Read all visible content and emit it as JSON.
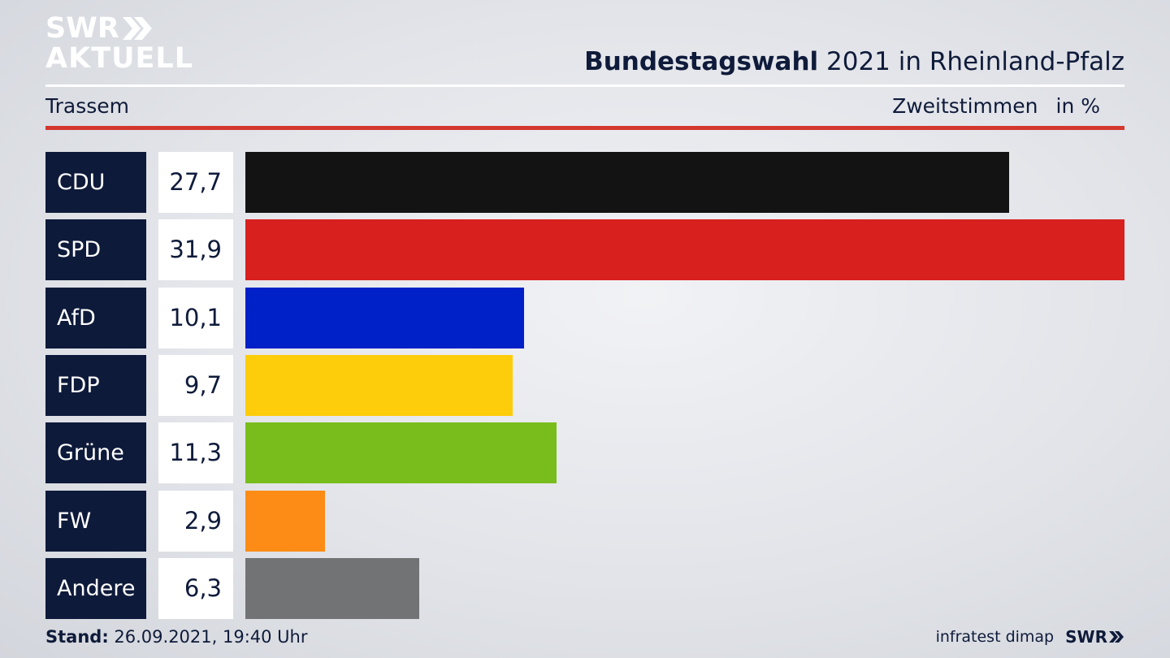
{
  "logo": {
    "line1": "SWR",
    "line2": "AKTUELL"
  },
  "header": {
    "title_bold": "Bundestagswahl",
    "title_rest": " 2021 in Rheinland-Pfalz",
    "left": "Trassem",
    "right_label": "Zweitstimmen",
    "right_unit": "in %"
  },
  "chart_data": {
    "type": "bar",
    "orientation": "horizontal",
    "categories": [
      "CDU",
      "SPD",
      "AfD",
      "FDP",
      "Grüne",
      "FW",
      "Andere"
    ],
    "values": [
      27.7,
      31.9,
      10.1,
      9.7,
      11.3,
      2.9,
      6.3
    ],
    "value_labels": [
      "27,7",
      "31,9",
      "10,1",
      "9,7",
      "11,3",
      "2,9",
      "6,3"
    ],
    "colors": [
      "#131313",
      "#d8201f",
      "#0020c8",
      "#fdcc0a",
      "#79bd1c",
      "#fd8c16",
      "#727375"
    ],
    "xlim": [
      0,
      31.9
    ],
    "title": "Bundestagswahl 2021 in Rheinland-Pfalz",
    "xlabel": "",
    "ylabel": "",
    "grid": false,
    "legend": "none"
  },
  "footer": {
    "stand_label": "Stand:",
    "stand_value": " 26.09.2021, 19:40 Uhr",
    "source": "infratest dimap",
    "brand": "SWR"
  }
}
